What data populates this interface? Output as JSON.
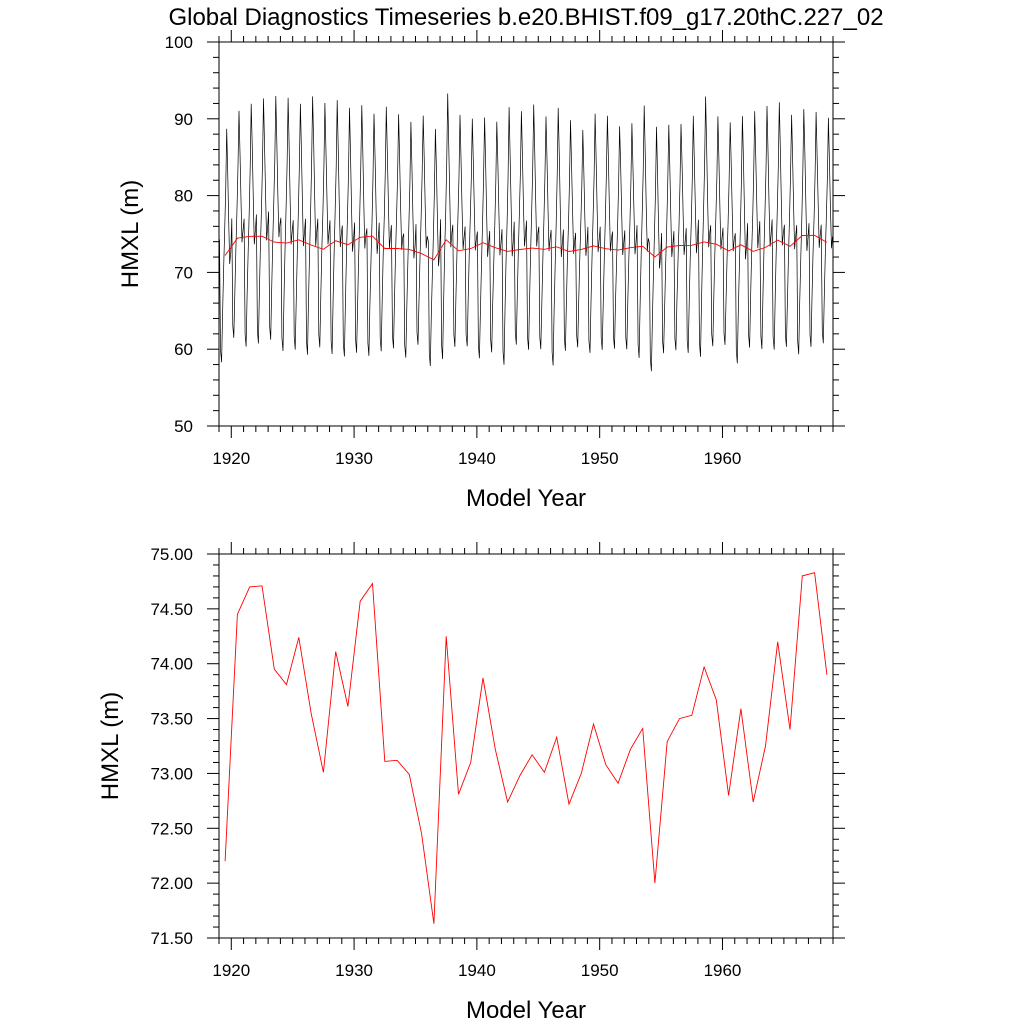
{
  "title": "Global Diagnostics Timeseries b.e20.BHIST.f09_g17.20thC.227_02",
  "colors": {
    "monthly": "#000000",
    "annual": "#ff0000"
  },
  "chart_data": [
    {
      "type": "line",
      "xlabel": "Model Year",
      "ylabel": "HMXL (m)",
      "xlim": [
        1919.0,
        1969.0
      ],
      "ylim": [
        50,
        100
      ],
      "x_ticks": [
        1920,
        1930,
        1940,
        1950,
        1960
      ],
      "y_ticks": [
        50,
        60,
        70,
        80,
        90,
        100
      ],
      "y_tick_labels": [
        "50",
        "60",
        "70",
        "80",
        "90",
        "100"
      ],
      "grid": false,
      "monthly_max": [
        89.5,
        91.8,
        92.8,
        93.5,
        93.8,
        93.6,
        92.8,
        93.8,
        92.9,
        93.3,
        92.3,
        92.6,
        91.5,
        92.4,
        91.4,
        90.4,
        91.2,
        89.5,
        94.2,
        91.3,
        90.8,
        91.0,
        90.4,
        92.4,
        91.8,
        92.7,
        91.1,
        92.3,
        90.6,
        89.3,
        91.5,
        91.2,
        89.8,
        90.2,
        92.6,
        89.8,
        90.0,
        90.1,
        91.2,
        93.8,
        91.1,
        90.3,
        91.2,
        91.8,
        92.5,
        93.0,
        91.3,
        92.1,
        91.7,
        90.9
      ],
      "monthly_min": [
        57.5,
        60.7,
        59.5,
        59.9,
        60.4,
        58.9,
        59.1,
        58.4,
        59.4,
        58.5,
        58.2,
        58.7,
        58.3,
        58.9,
        59.3,
        58.1,
        59.8,
        57.0,
        57.8,
        59.5,
        59.6,
        58.0,
        58.8,
        57.1,
        59.8,
        59.1,
        59.2,
        57.0,
        59.0,
        59.5,
        58.7,
        59.1,
        59.3,
        59.2,
        58.0,
        56.3,
        58.7,
        59.1,
        58.7,
        58.1,
        59.6,
        59.8,
        57.3,
        59.4,
        59.2,
        59.1,
        59.5,
        58.5,
        59.5,
        60.0
      ],
      "annual_x": [
        1919.5,
        1920.5,
        1921.5,
        1922.5,
        1923.5,
        1924.5,
        1925.5,
        1926.5,
        1927.5,
        1928.5,
        1929.5,
        1930.5,
        1931.5,
        1932.5,
        1933.5,
        1934.5,
        1935.5,
        1936.5,
        1937.5,
        1938.5,
        1939.5,
        1940.5,
        1941.5,
        1942.5,
        1943.5,
        1944.5,
        1945.5,
        1946.5,
        1947.5,
        1948.5,
        1949.5,
        1950.5,
        1951.5,
        1952.5,
        1953.5,
        1954.5,
        1955.5,
        1956.5,
        1957.5,
        1958.5,
        1959.5,
        1960.5,
        1961.5,
        1962.5,
        1963.5,
        1964.5,
        1965.5,
        1966.5,
        1967.5,
        1968.5
      ],
      "annual_y": [
        72.2,
        74.45,
        74.7,
        74.71,
        73.95,
        73.81,
        74.24,
        73.55,
        73.01,
        74.11,
        73.61,
        74.57,
        74.73,
        73.11,
        73.12,
        72.99,
        72.45,
        71.63,
        74.25,
        72.81,
        73.1,
        73.87,
        73.22,
        72.74,
        72.98,
        73.17,
        73.01,
        73.33,
        72.72,
        73.0,
        73.45,
        73.08,
        72.91,
        73.22,
        73.41,
        72.0,
        73.29,
        73.5,
        73.53,
        73.97,
        73.67,
        72.8,
        73.59,
        72.74,
        73.25,
        74.2,
        73.4,
        74.8,
        74.83,
        73.9
      ]
    },
    {
      "type": "line",
      "xlabel": "Model Year",
      "ylabel": "HMXL (m)",
      "xlim": [
        1919.0,
        1969.0
      ],
      "ylim": [
        71.5,
        75.0
      ],
      "x_ticks": [
        1920,
        1930,
        1940,
        1950,
        1960
      ],
      "y_ticks": [
        71.5,
        72.0,
        72.5,
        73.0,
        73.5,
        74.0,
        74.5,
        75.0
      ],
      "y_tick_labels": [
        "71.50",
        "72.00",
        "72.50",
        "73.00",
        "73.50",
        "74.00",
        "74.50",
        "75.00"
      ],
      "grid": false,
      "x": [
        1919.5,
        1920.5,
        1921.5,
        1922.5,
        1923.5,
        1924.5,
        1925.5,
        1926.5,
        1927.5,
        1928.5,
        1929.5,
        1930.5,
        1931.5,
        1932.5,
        1933.5,
        1934.5,
        1935.5,
        1936.5,
        1937.5,
        1938.5,
        1939.5,
        1940.5,
        1941.5,
        1942.5,
        1943.5,
        1944.5,
        1945.5,
        1946.5,
        1947.5,
        1948.5,
        1949.5,
        1950.5,
        1951.5,
        1952.5,
        1953.5,
        1954.5,
        1955.5,
        1956.5,
        1957.5,
        1958.5,
        1959.5,
        1960.5,
        1961.5,
        1962.5,
        1963.5,
        1964.5,
        1965.5,
        1966.5,
        1967.5,
        1968.5
      ],
      "y": [
        72.2,
        74.45,
        74.7,
        74.71,
        73.95,
        73.81,
        74.24,
        73.55,
        73.01,
        74.11,
        73.61,
        74.57,
        74.73,
        73.11,
        73.12,
        72.99,
        72.45,
        71.63,
        74.25,
        72.81,
        73.1,
        73.87,
        73.22,
        72.74,
        72.98,
        73.17,
        73.01,
        73.33,
        72.72,
        73.0,
        73.45,
        73.08,
        72.91,
        73.22,
        73.41,
        72.0,
        73.29,
        73.5,
        73.53,
        73.97,
        73.67,
        72.8,
        73.59,
        72.74,
        73.25,
        74.2,
        73.4,
        74.8,
        74.83,
        73.9
      ]
    }
  ]
}
